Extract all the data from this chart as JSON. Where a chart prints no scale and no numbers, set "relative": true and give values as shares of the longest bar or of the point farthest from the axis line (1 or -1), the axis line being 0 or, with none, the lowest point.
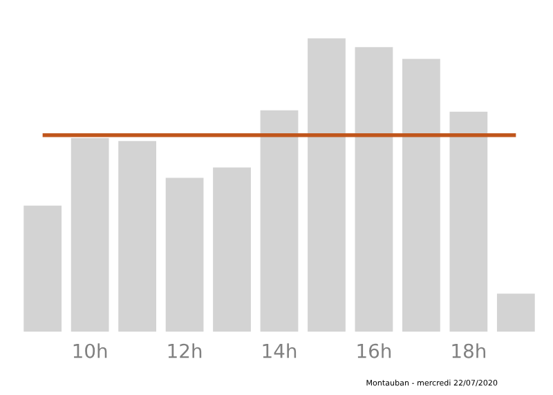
{
  "chart_data": {
    "type": "bar",
    "relative": true,
    "categories": [
      null,
      "10h",
      null,
      "12h",
      null,
      "14h",
      null,
      "16h",
      null,
      "18h",
      null
    ],
    "values": [
      0.43,
      0.66,
      0.65,
      0.525,
      0.56,
      0.755,
      1,
      0.97,
      0.93,
      0.75,
      0.13
    ],
    "color": "#d3d3d3",
    "ref_lines": [
      {
        "axis": "y",
        "value": 0.67,
        "color": "#c0561c"
      }
    ],
    "annotations": [
      "Montauban - mercredi 22/07/2020"
    ],
    "grid": false,
    "legend": false
  }
}
